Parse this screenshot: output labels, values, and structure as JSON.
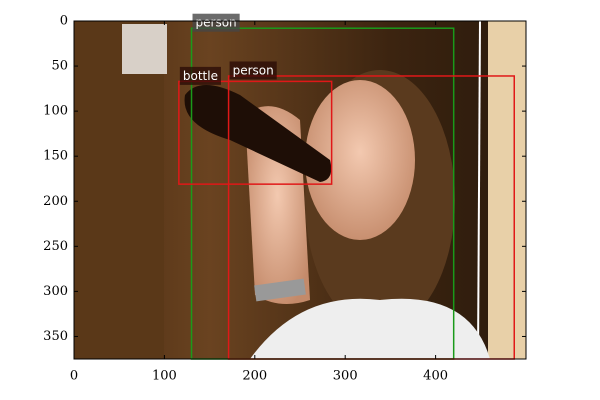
{
  "chart_data": {
    "type": "detection",
    "xlim": [
      0,
      500
    ],
    "ylim": [
      375,
      0
    ],
    "xticks": [
      0,
      100,
      200,
      300,
      400
    ],
    "yticks": [
      0,
      50,
      100,
      150,
      200,
      250,
      300,
      350
    ],
    "boxes": [
      {
        "label": "person",
        "color": "#1a9a1a",
        "x": [
          130,
          420
        ],
        "y": [
          8,
          375
        ]
      },
      {
        "label": "bottle",
        "color": "#e01818",
        "x": [
          116,
          285
        ],
        "y": [
          67,
          181
        ]
      },
      {
        "label": "person",
        "color": "#e01818",
        "x": [
          171,
          487
        ],
        "y": [
          61,
          375
        ]
      }
    ]
  }
}
